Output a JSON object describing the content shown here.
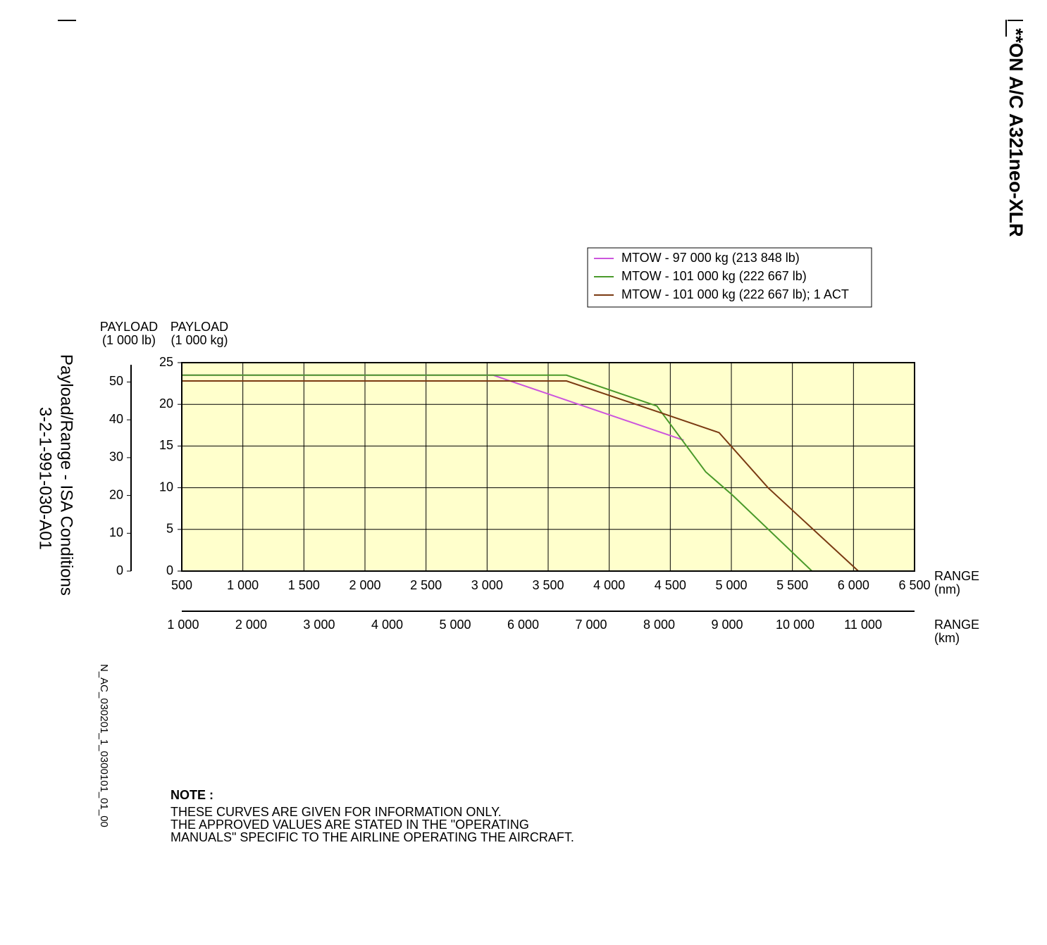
{
  "chart_data": {
    "type": "line",
    "header": "**ON A/C A321neo-XLR",
    "title": "Payload/Range - ISA Conditions",
    "subtitle": "3-2-1-991-030-A01",
    "figure_id": "N_AC_030201_1_0300101_01_00",
    "ylabel": [
      "PAYLOAD",
      "(1 000 kg)"
    ],
    "y2label": [
      "PAYLOAD",
      "(1 000 lb)"
    ],
    "xlabel": [
      "RANGE",
      "(nm)"
    ],
    "x2label": [
      "RANGE",
      "(km)"
    ],
    "xlim": [
      500,
      6500
    ],
    "xticks": [
      500,
      {
        "value": 1000,
        "label": "1 000"
      },
      {
        "value": 1500,
        "label": "1 500"
      },
      {
        "value": 2000,
        "label": "2 000"
      },
      {
        "value": 2500,
        "label": "2 500"
      },
      {
        "value": 3000,
        "label": "3 000"
      },
      {
        "value": 3500,
        "label": "3 500"
      },
      {
        "value": 4000,
        "label": "4 000"
      },
      {
        "value": 4500,
        "label": "4 500"
      },
      {
        "value": 5000,
        "label": "5 000"
      },
      {
        "value": 5500,
        "label": "5 500"
      },
      {
        "value": 6000,
        "label": "6 000"
      },
      {
        "value": 6500,
        "label": "6 500"
      }
    ],
    "x2lim": [
      980,
      11756
    ],
    "x2ticks": [
      {
        "value": 1000,
        "label": "1 000"
      },
      {
        "value": 2000,
        "label": "2 000"
      },
      {
        "value": 3000,
        "label": "3 000"
      },
      {
        "value": 4000,
        "label": "4 000"
      },
      {
        "value": 5000,
        "label": "5 000"
      },
      {
        "value": 6000,
        "label": "6 000"
      },
      {
        "value": 7000,
        "label": "7 000"
      },
      {
        "value": 8000,
        "label": "8 000"
      },
      {
        "value": 9000,
        "label": "9 000"
      },
      {
        "value": 10000,
        "label": "10 000"
      },
      {
        "value": 11000,
        "label": "11 000"
      }
    ],
    "ylim": [
      0,
      25
    ],
    "yticks": [
      0,
      5,
      10,
      15,
      20,
      25
    ],
    "y2lim": [
      0,
      55.12
    ],
    "y2ticks": [
      0,
      10,
      20,
      30,
      40,
      50
    ],
    "grid": true,
    "background": "#ffffcc",
    "series": [
      {
        "name": "MTOW - 97 000 kg (213 848 lb)",
        "color": "#cc55dd",
        "x": [
          500,
          3050,
          4610
        ],
        "values": [
          23.5,
          23.5,
          15.7
        ]
      },
      {
        "name": "MTOW - 101 000 kg (222 667 lb)",
        "color": "#4a9a2a",
        "x": [
          500,
          3650,
          4390,
          4790,
          5010,
          5660
        ],
        "values": [
          23.5,
          23.5,
          19.8,
          11.9,
          9.1,
          0
        ]
      },
      {
        "name": "MTOW - 101 000 kg (222 667 lb); 1 ACT",
        "color": "#7a3a12",
        "x": [
          500,
          3650,
          4420,
          4900,
          5300,
          6040
        ],
        "values": [
          22.8,
          22.8,
          19.0,
          16.6,
          10.0,
          0
        ]
      }
    ],
    "note": {
      "title": "NOTE :",
      "lines": [
        "THESE CURVES ARE GIVEN FOR INFORMATION ONLY.",
        "THE APPROVED VALUES ARE STATED IN THE \"OPERATING",
        "MANUALS\" SPECIFIC TO THE AIRLINE OPERATING THE AIRCRAFT."
      ]
    }
  }
}
